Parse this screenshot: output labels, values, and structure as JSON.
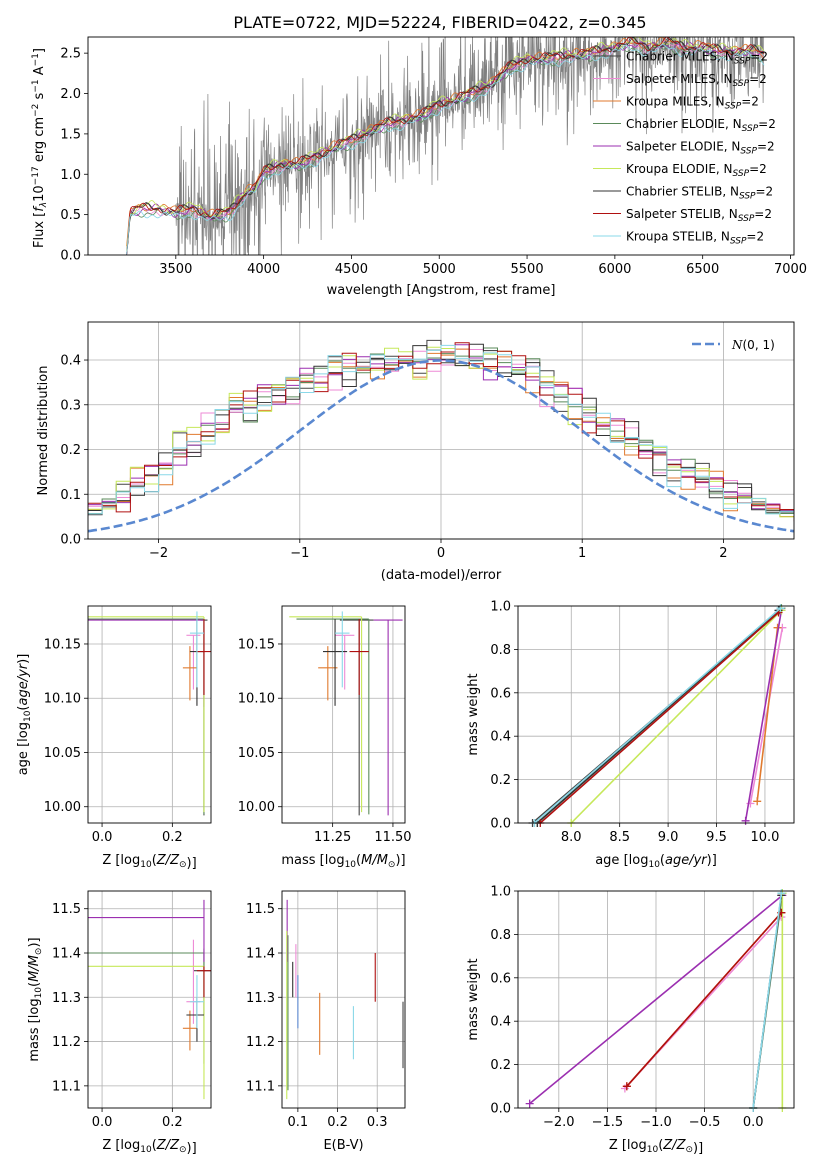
{
  "figure": {
    "title": "PLATE=0722, MJD=52224, FIBERID=0422, z=0.345"
  },
  "colors": [
    "#444444",
    "#ee8ad6",
    "#e07a2e",
    "#5a8a5a",
    "#9b2fb0",
    "#c6e85a",
    "#333333",
    "#b01010",
    "#8ad8e8"
  ],
  "chart_data": [
    {
      "type": "line",
      "panel": "spectrum",
      "title": "PLATE=0722, MJD=52224, FIBERID=0422, z=0.345",
      "xlabel": "wavelength [Angstrom, rest frame]",
      "ylabel": "Flux [f_λ 10^-17 erg cm^-2 s^-1 A^-1]",
      "xlim": [
        3000,
        7020
      ],
      "ylim": [
        0,
        2.7
      ],
      "xticks": [
        3500,
        4000,
        4500,
        5000,
        5500,
        6000,
        6500,
        7000
      ],
      "yticks": [
        0.0,
        0.5,
        1.0,
        1.5,
        2.0,
        2.5
      ],
      "grid": false,
      "legend_position": "right",
      "data_color": "#808080",
      "data_range": [
        3500,
        6850
      ],
      "model_range": [
        3220,
        6850
      ],
      "model_points": {
        "x": [
          3220,
          3240,
          3300,
          3400,
          3500,
          3600,
          3700,
          3800,
          3900,
          3950,
          4000,
          4100,
          4200,
          4300,
          4400,
          4500,
          4600,
          4700,
          4800,
          4900,
          5000,
          5100,
          5200,
          5300,
          5400,
          5500,
          5600,
          5700,
          5800,
          5900,
          6000,
          6100,
          6200,
          6300,
          6400,
          6500,
          6600,
          6700,
          6800,
          6850
        ],
        "y": [
          0.0,
          0.5,
          0.55,
          0.55,
          0.5,
          0.55,
          0.45,
          0.5,
          0.75,
          0.8,
          1.0,
          1.1,
          1.1,
          1.2,
          1.3,
          1.4,
          1.5,
          1.6,
          1.65,
          1.7,
          1.85,
          1.9,
          2.0,
          2.1,
          2.3,
          2.4,
          2.4,
          2.45,
          2.45,
          2.5,
          2.55,
          2.6,
          2.55,
          2.6,
          2.55,
          2.55,
          2.5,
          2.5,
          2.5,
          2.45
        ]
      },
      "series": [
        {
          "name": "Chabrier MILES, N_SSP=2",
          "label_main": "Chabrier MILES, N",
          "label_sub": "SSP",
          "label_tail": "=2",
          "color": "#444444"
        },
        {
          "name": "Salpeter MILES, N_SSP=2",
          "label_main": "Salpeter MILES, N",
          "label_sub": "SSP",
          "label_tail": "=2",
          "color": "#ee8ad6"
        },
        {
          "name": "Kroupa MILES, N_SSP=2",
          "label_main": "Kroupa MILES, N",
          "label_sub": "SSP",
          "label_tail": "=2",
          "color": "#e07a2e"
        },
        {
          "name": "Chabrier ELODIE, N_SSP=2",
          "label_main": "Chabrier ELODIE, N",
          "label_sub": "SSP",
          "label_tail": "=2",
          "color": "#5a8a5a"
        },
        {
          "name": "Salpeter ELODIE, N_SSP=2",
          "label_main": "Salpeter ELODIE, N",
          "label_sub": "SSP",
          "label_tail": "=2",
          "color": "#9b2fb0"
        },
        {
          "name": "Kroupa ELODIE, N_SSP=2",
          "label_main": "Kroupa ELODIE, N",
          "label_sub": "SSP",
          "label_tail": "=2",
          "color": "#c6e85a"
        },
        {
          "name": "Chabrier STELIB, N_SSP=2",
          "label_main": "Chabrier STELIB, N",
          "label_sub": "SSP",
          "label_tail": "=2",
          "color": "#333333"
        },
        {
          "name": "Salpeter STELIB, N_SSP=2",
          "label_main": "Salpeter STELIB, N",
          "label_sub": "SSP",
          "label_tail": "=2",
          "color": "#b01010"
        },
        {
          "name": "Kroupa STELIB, N_SSP=2",
          "label_main": "Kroupa STELIB, N",
          "label_sub": "SSP",
          "label_tail": "=2",
          "color": "#8ad8e8"
        }
      ]
    },
    {
      "type": "line",
      "panel": "residuals",
      "xlabel": "(data-model)/error",
      "ylabel": "Normed distribution",
      "xlim": [
        -2.5,
        2.5
      ],
      "ylim": [
        0,
        0.485
      ],
      "xticks": [
        -2,
        -1,
        0,
        1,
        2
      ],
      "yticks": [
        0.0,
        0.1,
        0.2,
        0.3,
        0.4
      ],
      "grid": true,
      "legend_position": "top-right",
      "reference": {
        "name": "N(0,1)",
        "color": "#5a88d0",
        "style": "dashed",
        "mean": 0,
        "sigma": 1
      },
      "hist_bin_width": 0.1,
      "hist_base": [
        0.01,
        0.01,
        0.012,
        0.015,
        0.02,
        0.025,
        0.03,
        0.04,
        0.05,
        0.06,
        0.07,
        0.08,
        0.1,
        0.12,
        0.14,
        0.16,
        0.2,
        0.22,
        0.24,
        0.26,
        0.29,
        0.3,
        0.32,
        0.33,
        0.34,
        0.35,
        0.36,
        0.37,
        0.38,
        0.385,
        0.39,
        0.395,
        0.4,
        0.4,
        0.405,
        0.41,
        0.41,
        0.405,
        0.4,
        0.39,
        0.38,
        0.36,
        0.34,
        0.32,
        0.3,
        0.28,
        0.26,
        0.24,
        0.22,
        0.2,
        0.18,
        0.16,
        0.15,
        0.13,
        0.12,
        0.1,
        0.09,
        0.08,
        0.07,
        0.06,
        0.05,
        0.04,
        0.035,
        0.03,
        0.03,
        0.02,
        0.02,
        0.015,
        0.01,
        0.01
      ]
    },
    {
      "type": "scatter",
      "panel": "age-vs-Z",
      "xlabel": "Z [log10(Z/Z⊙)]",
      "ylabel": "age [log10(age/yr)]",
      "xlim": [
        -0.04,
        0.31
      ],
      "ylim": [
        9.985,
        10.185
      ],
      "xticks": [
        0.0,
        0.2
      ],
      "yticks": [
        10.0,
        10.05,
        10.1,
        10.15
      ],
      "grid": true,
      "points": [
        {
          "x": 0.29,
          "y": 10.172,
          "color": "#444444"
        },
        {
          "x": 0.26,
          "y": 10.158,
          "color": "#ee8ad6"
        },
        {
          "x": 0.25,
          "y": 10.128,
          "color": "#e07a2e"
        },
        {
          "x": 0.29,
          "y": 10.173,
          "color": "#5a8a5a"
        },
        {
          "x": 0.29,
          "y": 10.172,
          "color": "#9b2fb0"
        },
        {
          "x": 0.29,
          "y": 10.175,
          "color": "#c6e85a"
        },
        {
          "x": 0.27,
          "y": 10.143,
          "color": "#333333"
        },
        {
          "x": 0.29,
          "y": 10.143,
          "color": "#b01010"
        },
        {
          "x": 0.27,
          "y": 10.16,
          "color": "#8ad8e8"
        }
      ]
    },
    {
      "type": "scatter",
      "panel": "age-vs-mass",
      "xlabel": "mass [log10(M/M⊙)]",
      "ylabel": "",
      "xlim": [
        11.04,
        11.55
      ],
      "ylim": [
        9.985,
        10.185
      ],
      "xticks": [
        11.25,
        11.5
      ],
      "yticks": [
        10.0,
        10.05,
        10.1,
        10.15
      ],
      "grid": true,
      "points": [
        {
          "x": 11.36,
          "y": 10.172,
          "color": "#444444"
        },
        {
          "x": 11.3,
          "y": 10.158,
          "color": "#ee8ad6"
        },
        {
          "x": 11.23,
          "y": 10.128,
          "color": "#e07a2e"
        },
        {
          "x": 11.4,
          "y": 10.173,
          "color": "#5a8a5a"
        },
        {
          "x": 11.48,
          "y": 10.172,
          "color": "#9b2fb0"
        },
        {
          "x": 11.37,
          "y": 10.175,
          "color": "#c6e85a"
        },
        {
          "x": 11.26,
          "y": 10.143,
          "color": "#333333"
        },
        {
          "x": 11.36,
          "y": 10.143,
          "color": "#b01010"
        },
        {
          "x": 11.29,
          "y": 10.16,
          "color": "#8ad8e8"
        }
      ]
    },
    {
      "type": "line",
      "panel": "mass-weight-vs-age",
      "xlabel": "age [log10(age/yr)]",
      "ylabel": "mass weight",
      "xlim": [
        7.45,
        10.3
      ],
      "ylim": [
        0,
        1.0
      ],
      "xticks": [
        8.0,
        8.5,
        9.0,
        9.5,
        10.0
      ],
      "yticks": [
        0.0,
        0.2,
        0.4,
        0.6,
        0.8,
        1.0
      ],
      "grid": true,
      "series": [
        {
          "color": "#444444",
          "x": [
            7.6,
            10.15
          ],
          "y": [
            0.0,
            0.98
          ]
        },
        {
          "color": "#ee8ad6",
          "x": [
            9.85,
            10.18
          ],
          "y": [
            0.09,
            0.9
          ]
        },
        {
          "color": "#e07a2e",
          "x": [
            9.92,
            10.13
          ],
          "y": [
            0.1,
            0.9
          ]
        },
        {
          "color": "#5a8a5a",
          "x": [
            7.65,
            10.17
          ],
          "y": [
            0.0,
            0.99
          ]
        },
        {
          "color": "#9b2fb0",
          "x": [
            9.8,
            10.17
          ],
          "y": [
            0.01,
            0.98
          ]
        },
        {
          "color": "#c6e85a",
          "x": [
            8.0,
            10.17
          ],
          "y": [
            0.0,
            0.98
          ]
        },
        {
          "color": "#333333",
          "x": [
            7.65,
            10.14
          ],
          "y": [
            0.0,
            0.98
          ]
        },
        {
          "color": "#b01010",
          "x": [
            7.68,
            10.14
          ],
          "y": [
            0.0,
            0.97
          ]
        },
        {
          "color": "#8ad8e8",
          "x": [
            7.62,
            10.16
          ],
          "y": [
            0.0,
            0.99
          ]
        }
      ]
    },
    {
      "type": "scatter",
      "panel": "mass-vs-Z",
      "xlabel": "Z [log10(Z/Z⊙)]",
      "ylabel": "mass [log10(M/M⊙)]",
      "xlim": [
        -0.04,
        0.31
      ],
      "ylim": [
        11.05,
        11.54
      ],
      "xticks": [
        0.0,
        0.2
      ],
      "yticks": [
        11.1,
        11.2,
        11.3,
        11.4,
        11.5
      ],
      "grid": true,
      "points": [
        {
          "x": 0.29,
          "y": 11.36,
          "color": "#444444"
        },
        {
          "x": 0.26,
          "y": 11.29,
          "color": "#ee8ad6"
        },
        {
          "x": 0.25,
          "y": 11.23,
          "color": "#e07a2e"
        },
        {
          "x": 0.29,
          "y": 11.4,
          "color": "#5a8a5a"
        },
        {
          "x": 0.29,
          "y": 11.48,
          "color": "#9b2fb0"
        },
        {
          "x": 0.29,
          "y": 11.37,
          "color": "#c6e85a"
        },
        {
          "x": 0.27,
          "y": 11.26,
          "color": "#333333"
        },
        {
          "x": 0.29,
          "y": 11.36,
          "color": "#b01010"
        },
        {
          "x": 0.27,
          "y": 11.29,
          "color": "#8ad8e8"
        }
      ]
    },
    {
      "type": "scatter",
      "panel": "mass-vs-EBV",
      "xlabel": "E(B-V)",
      "ylabel": "",
      "xlim": [
        0.06,
        0.37
      ],
      "ylim": [
        11.05,
        11.54
      ],
      "xticks": [
        0.1,
        0.2,
        0.3
      ],
      "yticks": [
        11.1,
        11.2,
        11.3,
        11.4,
        11.5
      ],
      "grid": true,
      "bars": [
        {
          "x": 0.365,
          "lo": 11.14,
          "hi": 11.29,
          "color": "#444444"
        },
        {
          "x": 0.095,
          "lo": 11.3,
          "hi": 11.42,
          "color": "#ee8ad6"
        },
        {
          "x": 0.155,
          "lo": 11.17,
          "hi": 11.31,
          "color": "#e07a2e"
        },
        {
          "x": 0.075,
          "lo": 11.09,
          "hi": 11.44,
          "color": "#5a8a5a"
        },
        {
          "x": 0.073,
          "lo": 11.38,
          "hi": 11.52,
          "color": "#9b2fb0"
        },
        {
          "x": 0.072,
          "lo": 11.07,
          "hi": 11.45,
          "color": "#c6e85a"
        },
        {
          "x": 0.087,
          "lo": 11.3,
          "hi": 11.38,
          "color": "#333333"
        },
        {
          "x": 0.295,
          "lo": 11.29,
          "hi": 11.4,
          "color": "#b01010"
        },
        {
          "x": 0.24,
          "lo": 11.16,
          "hi": 11.28,
          "color": "#8ad8e8"
        },
        {
          "x": 0.1,
          "lo": 11.23,
          "hi": 11.35,
          "color": "#5a88d0"
        }
      ]
    },
    {
      "type": "line",
      "panel": "mass-weight-vs-Z",
      "xlabel": "Z [log10(Z/Z⊙)]",
      "ylabel": "mass weight",
      "xlim": [
        -2.42,
        0.42
      ],
      "ylim": [
        0,
        1.0
      ],
      "xticks": [
        -2.0,
        -1.5,
        -1.0,
        -0.5,
        0.0
      ],
      "yticks": [
        0.0,
        0.2,
        0.4,
        0.6,
        0.8,
        1.0
      ],
      "grid": true,
      "series": [
        {
          "color": "#444444",
          "x": [
            0.0,
            0.29
          ],
          "y": [
            0.0,
            0.98
          ]
        },
        {
          "color": "#ee8ad6",
          "x": [
            -1.32,
            0.29
          ],
          "y": [
            0.09,
            0.88
          ]
        },
        {
          "color": "#e07a2e",
          "x": [
            -1.3,
            0.29
          ],
          "y": [
            0.1,
            0.9
          ]
        },
        {
          "color": "#5a8a5a",
          "x": [
            0.0,
            0.3
          ],
          "y": [
            0.0,
            0.99
          ]
        },
        {
          "color": "#9b2fb0",
          "x": [
            -2.3,
            0.3
          ],
          "y": [
            0.02,
            0.98
          ]
        },
        {
          "color": "#c6e85a",
          "x": [
            0.3,
            0.3
          ],
          "y": [
            0.0,
            0.99
          ]
        },
        {
          "color": "#333333",
          "x": [
            0.0,
            0.29
          ],
          "y": [
            0.0,
            0.98
          ]
        },
        {
          "color": "#b01010",
          "x": [
            -1.3,
            0.29
          ],
          "y": [
            0.1,
            0.9
          ]
        },
        {
          "color": "#8ad8e8",
          "x": [
            0.0,
            0.29
          ],
          "y": [
            0.0,
            0.99
          ]
        }
      ]
    }
  ]
}
